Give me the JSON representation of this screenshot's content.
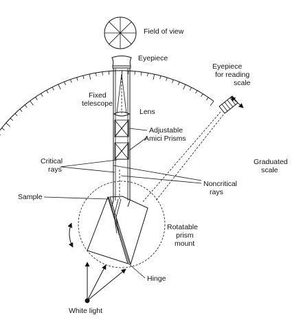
{
  "labels": {
    "field_of_view": "Field of view",
    "eyepiece": "Eyepiece",
    "eyepiece_reading_line1": "Eyepiece",
    "eyepiece_reading_line2": "for reading",
    "eyepiece_reading_line3": "scale",
    "fixed_telescope_line1": "Fixed",
    "fixed_telescope_line2": "telescope",
    "lens": "Lens",
    "amici_line1": "Adjustable",
    "amici_line2": "Amici Prisms",
    "critical_line1": "Critical",
    "critical_line2": "rays",
    "graduated_line1": "Graduated",
    "graduated_line2": "scale",
    "noncritical_line1": "Noncritical",
    "noncritical_line2": "rays",
    "sample": "Sample",
    "rotatable_line1": "Rotatable",
    "rotatable_line2": "prism",
    "rotatable_line3": "mount",
    "hinge": "Hinge",
    "white_light": "White light"
  }
}
